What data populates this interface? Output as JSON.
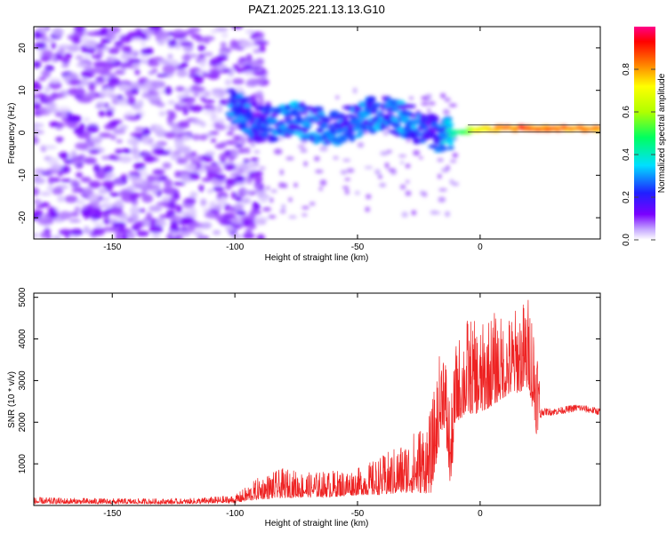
{
  "figure": {
    "title": "PAZ1.2025.221.13.13.G10"
  },
  "chart_data": [
    {
      "type": "heatmap",
      "xlabel": "Height of straight line (km)",
      "ylabel": "Frequency (Hz)",
      "xlim": [
        -182,
        49
      ],
      "ylim": [
        -25,
        25
      ],
      "xticks": [
        -150,
        -100,
        -50,
        0
      ],
      "yticks": [
        -20,
        -10,
        0,
        10,
        20
      ],
      "colorbar": {
        "label": "Normalized spectral amplitude",
        "range": [
          0,
          1
        ],
        "ticks": [
          "0.0",
          "0.2",
          "0.4",
          "0.6",
          "0.8"
        ],
        "tick_values": [
          0.0,
          0.2,
          0.4,
          0.6,
          0.8
        ],
        "colormap": "rainbow (white-purple-blue-cyan-green-yellow-red-magenta)"
      },
      "features": {
        "noise_region_x": [
          -182,
          -100
        ],
        "noise_amplitude": 0.1,
        "signal_track": [
          {
            "x": -100,
            "y": 6,
            "amp": 0.3
          },
          {
            "x": -90,
            "y": 2,
            "amp": 0.25
          },
          {
            "x": -75,
            "y": 3,
            "amp": 0.3
          },
          {
            "x": -60,
            "y": 1,
            "amp": 0.25
          },
          {
            "x": -40,
            "y": 5,
            "amp": 0.3
          },
          {
            "x": -30,
            "y": 3,
            "amp": 0.3
          },
          {
            "x": -20,
            "y": 0,
            "amp": 0.25
          },
          {
            "x": -15,
            "y": -1,
            "amp": 0.3
          },
          {
            "x": -10,
            "y": 0,
            "amp": 0.45
          },
          {
            "x": 0,
            "y": 1,
            "amp": 0.75
          },
          {
            "x": 10,
            "y": 1,
            "amp": 0.9
          },
          {
            "x": 30,
            "y": 1,
            "amp": 0.9
          },
          {
            "x": 49,
            "y": 1,
            "amp": 0.85
          }
        ]
      }
    },
    {
      "type": "line",
      "xlabel": "Height of straight line (km)",
      "ylabel": "SNR (10 * v/v)",
      "xlim": [
        -182,
        49
      ],
      "ylim": [
        0,
        5100
      ],
      "xticks": [
        -150,
        -100,
        -50,
        0
      ],
      "yticks": [
        1000,
        2000,
        3000,
        4000,
        5000
      ],
      "series_color": "#ee2222",
      "envelope": {
        "x": [
          -182,
          -160,
          -140,
          -120,
          -100,
          -90,
          -80,
          -70,
          -60,
          -50,
          -40,
          -30,
          -20,
          -15,
          -12,
          -10,
          -5,
          0,
          5,
          10,
          15,
          20,
          23,
          25,
          30,
          40,
          49
        ],
        "low": [
          40,
          40,
          40,
          40,
          60,
          150,
          180,
          200,
          200,
          250,
          250,
          300,
          300,
          2000,
          400,
          2000,
          2200,
          2200,
          2400,
          2600,
          2700,
          2800,
          1700,
          2100,
          2100,
          2200,
          2100
        ],
        "high": [
          200,
          180,
          170,
          170,
          250,
          700,
          900,
          800,
          850,
          900,
          1200,
          1600,
          2300,
          4300,
          2400,
          3900,
          4600,
          4300,
          4700,
          4500,
          4800,
          5100,
          4500,
          2400,
          2400,
          2500,
          2400
        ]
      }
    }
  ]
}
